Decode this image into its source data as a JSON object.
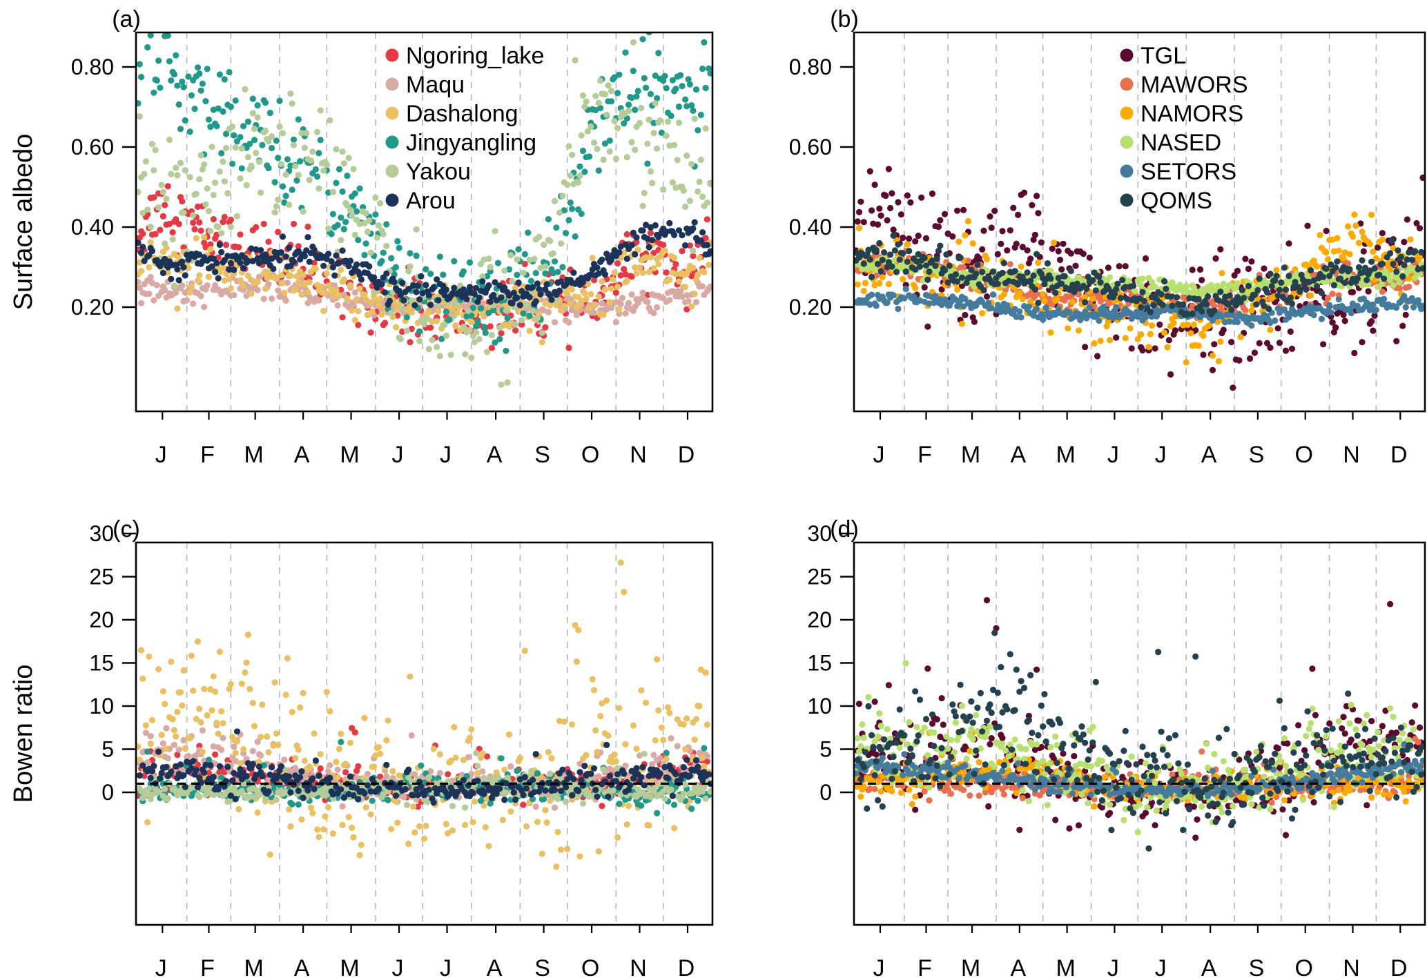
{
  "chart_data": [
    {
      "id": "a",
      "panel_label": "(a)",
      "type": "scatter",
      "ylabel": "Surface albedo",
      "xlabel": "",
      "x_unit": "day of year",
      "xlim": [
        1,
        365
      ],
      "ylim": [
        0.1,
        0.9
      ],
      "yticks": [
        0.2,
        0.4,
        0.6,
        0.8
      ],
      "ytick_labels": [
        "0.20",
        "0.40",
        "0.60",
        "0.80"
      ],
      "month_labels": [
        "J",
        "F",
        "M",
        "A",
        "M",
        "J",
        "J",
        "A",
        "S",
        "O",
        "N",
        "D"
      ],
      "grid": "vertical dashed lines at month boundaries",
      "reference_line": null,
      "legend_position": "top-center",
      "note": "Daily scatter; per-station values below are approximate monthly means (Jan..Dec) with a typical scatter (spread) estimated from the figure. Plotted points are synthesized from these estimates and do not reproduce individual measurements.",
      "series": [
        {
          "name": "Ngoring_lake",
          "color": "#e63946",
          "monthly_mean": [
            0.46,
            0.38,
            0.34,
            0.3,
            0.25,
            0.21,
            0.185,
            0.185,
            0.19,
            0.21,
            0.33,
            0.31
          ],
          "spread": 0.04
        },
        {
          "name": "Maqu",
          "color": "#d9a9a4",
          "monthly_mean": [
            0.24,
            0.24,
            0.25,
            0.24,
            0.22,
            0.2,
            0.2,
            0.2,
            0.2,
            0.2,
            0.21,
            0.24
          ],
          "spread": 0.015
        },
        {
          "name": "Dashalong",
          "color": "#e9c062",
          "monthly_mean": [
            0.33,
            0.29,
            0.27,
            0.26,
            0.23,
            0.2,
            0.19,
            0.19,
            0.2,
            0.25,
            0.33,
            0.28
          ],
          "spread": 0.03
        },
        {
          "name": "Jingyangling",
          "color": "#21998a",
          "monthly_mean": [
            0.8,
            0.68,
            0.62,
            0.58,
            0.45,
            0.26,
            0.22,
            0.21,
            0.28,
            0.62,
            0.74,
            0.73
          ],
          "spread": 0.06
        },
        {
          "name": "Yakou",
          "color": "#b5cc98",
          "monthly_mean": [
            0.45,
            0.5,
            0.56,
            0.6,
            0.48,
            0.22,
            0.17,
            0.17,
            0.3,
            0.68,
            0.65,
            0.55
          ],
          "spread": 0.08
        },
        {
          "name": "Arou",
          "color": "#1b3358",
          "monthly_mean": [
            0.305,
            0.31,
            0.32,
            0.34,
            0.3,
            0.24,
            0.235,
            0.235,
            0.23,
            0.28,
            0.38,
            0.38
          ],
          "spread": 0.015
        }
      ]
    },
    {
      "id": "b",
      "panel_label": "(b)",
      "type": "scatter",
      "ylabel": "",
      "xlabel": "",
      "x_unit": "day of year",
      "xlim": [
        1,
        365
      ],
      "ylim": [
        0.1,
        0.9
      ],
      "yticks": [
        0.2,
        0.4,
        0.6,
        0.8
      ],
      "ytick_labels": [
        "0.20",
        "0.40",
        "0.60",
        "0.80"
      ],
      "month_labels": [
        "J",
        "F",
        "M",
        "A",
        "M",
        "J",
        "J",
        "A",
        "S",
        "O",
        "N",
        "D"
      ],
      "grid": "vertical dashed lines at month boundaries",
      "reference_line": null,
      "legend_position": "top-center",
      "note": "Daily scatter; approximate monthly means (Jan..Dec) with estimated spread. Plotted points are synthesized and do not reproduce individual measurements.",
      "series": [
        {
          "name": "TGL",
          "color": "#5a0a2e",
          "monthly_mean": [
            0.42,
            0.3,
            0.3,
            0.36,
            0.3,
            0.22,
            0.17,
            0.17,
            0.2,
            0.21,
            0.22,
            0.3
          ],
          "spread": 0.07
        },
        {
          "name": "MAWORS",
          "color": "#e9704f",
          "monthly_mean": [
            0.31,
            0.3,
            0.28,
            0.25,
            0.22,
            0.22,
            0.21,
            0.2,
            0.23,
            0.26,
            0.28,
            0.27
          ],
          "spread": 0.02
        },
        {
          "name": "NAMORS",
          "color": "#fdaa00",
          "monthly_mean": [
            0.3,
            0.28,
            0.26,
            0.24,
            0.21,
            0.18,
            0.17,
            0.18,
            0.2,
            0.28,
            0.4,
            0.3
          ],
          "spread": 0.04
        },
        {
          "name": "NASED",
          "color": "#b8e06e",
          "monthly_mean": [
            0.31,
            0.3,
            0.27,
            0.27,
            0.27,
            0.26,
            0.25,
            0.24,
            0.25,
            0.27,
            0.27,
            0.28
          ],
          "spread": 0.01
        },
        {
          "name": "SETORS",
          "color": "#457b9d",
          "monthly_mean": [
            0.22,
            0.22,
            0.21,
            0.19,
            0.18,
            0.18,
            0.19,
            0.18,
            0.17,
            0.19,
            0.2,
            0.21
          ],
          "spread": 0.008
        },
        {
          "name": "QOMS",
          "color": "#23414f",
          "monthly_mean": [
            0.33,
            0.31,
            0.28,
            0.27,
            0.26,
            0.24,
            0.22,
            0.21,
            0.23,
            0.27,
            0.29,
            0.31
          ],
          "spread": 0.02
        }
      ]
    },
    {
      "id": "c",
      "panel_label": "(c)",
      "type": "scatter",
      "ylabel": "Bowen ratio",
      "xlabel": "",
      "x_unit": "day of year",
      "xlim": [
        1,
        365
      ],
      "ylim": [
        -3,
        30
      ],
      "yticks": [
        0,
        5,
        10,
        15,
        20,
        25,
        30
      ],
      "ytick_labels": [
        "0",
        "5",
        "10",
        "15",
        "20",
        "25",
        "30"
      ],
      "month_labels": [
        "J",
        "F",
        "M",
        "A",
        "M",
        "J",
        "J",
        "A",
        "S",
        "O",
        "N",
        "D"
      ],
      "grid": "vertical dashed lines at month boundaries",
      "reference_line": {
        "y": 1,
        "style": "dashed",
        "color": "#000000"
      },
      "legend_position": "none (shares legend with panel a)",
      "note": "Daily scatter; approximate monthly means (Jan..Dec) with estimated spread. Plotted points are synthesized and do not reproduce individual measurements.",
      "series": [
        {
          "name": "Ngoring_lake",
          "color": "#e63946",
          "monthly_mean": [
            1.5,
            2.5,
            2.0,
            1.3,
            0.8,
            0.5,
            0.4,
            0.5,
            0.7,
            1.0,
            1.5,
            3.0
          ],
          "spread": 1.0
        },
        {
          "name": "Maqu",
          "color": "#d9a9a4",
          "monthly_mean": [
            4.0,
            4.5,
            3.0,
            1.5,
            0.8,
            0.5,
            0.4,
            0.5,
            0.6,
            1.2,
            2.5,
            3.5
          ],
          "spread": 1.3
        },
        {
          "name": "Dashalong",
          "color": "#e9c062",
          "monthly_mean": [
            8.0,
            10.0,
            5.0,
            2.0,
            1.0,
            0.6,
            0.5,
            0.6,
            0.8,
            2.0,
            4.0,
            5.0
          ],
          "spread": 4.5
        },
        {
          "name": "Jingyangling",
          "color": "#21998a",
          "monthly_mean": [
            0.5,
            0.0,
            0.0,
            -0.2,
            0.2,
            0.5,
            0.5,
            0.5,
            0.7,
            0.5,
            -0.5,
            -0.5
          ],
          "spread": 1.0
        },
        {
          "name": "Yakou",
          "color": "#b5cc98",
          "monthly_mean": [
            0.3,
            0.3,
            0.0,
            0.0,
            0.3,
            0.4,
            0.5,
            0.5,
            0.7,
            0.2,
            0.0,
            0.0
          ],
          "spread": 1.0
        },
        {
          "name": "Arou",
          "color": "#1b3358",
          "monthly_mean": [
            2.5,
            2.0,
            1.8,
            1.0,
            0.6,
            0.2,
            0.2,
            0.2,
            0.5,
            1.2,
            2.0,
            2.5
          ],
          "spread": 0.9
        }
      ]
    },
    {
      "id": "d",
      "panel_label": "(d)",
      "type": "scatter",
      "ylabel": "",
      "xlabel": "",
      "x_unit": "day of year",
      "xlim": [
        1,
        365
      ],
      "ylim": [
        -3,
        30
      ],
      "yticks": [
        0,
        5,
        10,
        15,
        20,
        25,
        30
      ],
      "ytick_labels": [
        "0",
        "5",
        "10",
        "15",
        "20",
        "25",
        "30"
      ],
      "month_labels": [
        "J",
        "F",
        "M",
        "A",
        "M",
        "J",
        "J",
        "A",
        "S",
        "O",
        "N",
        "D"
      ],
      "grid": "vertical dashed lines at month boundaries",
      "reference_line": {
        "y": 1,
        "style": "dashed",
        "color": "#000000"
      },
      "legend_position": "none (shares legend with panel b)",
      "note": "Daily scatter; approximate monthly means (Jan..Dec) with estimated spread. Plotted points are synthesized and do not reproduce individual measurements.",
      "series": [
        {
          "name": "TGL",
          "color": "#5a0a2e",
          "monthly_mean": [
            5.0,
            4.0,
            5.0,
            3.0,
            1.5,
            0.6,
            0.4,
            0.5,
            1.0,
            3.0,
            5.0,
            6.0
          ],
          "spread": 2.5
        },
        {
          "name": "MAWORS",
          "color": "#e9704f",
          "monthly_mean": [
            1.5,
            1.3,
            1.2,
            1.0,
            0.8,
            0.6,
            0.5,
            0.5,
            0.7,
            0.8,
            0.7,
            0.6
          ],
          "spread": 0.8
        },
        {
          "name": "NAMORS",
          "color": "#fdaa00",
          "monthly_mean": [
            1.0,
            1.8,
            2.2,
            2.5,
            1.5,
            0.7,
            0.4,
            0.4,
            0.6,
            0.7,
            0.8,
            0.8
          ],
          "spread": 1.0
        },
        {
          "name": "NASED",
          "color": "#b8e06e",
          "monthly_mean": [
            5.0,
            4.0,
            4.5,
            4.0,
            3.0,
            1.5,
            0.5,
            0.5,
            1.5,
            3.5,
            4.0,
            5.0
          ],
          "spread": 2.2
        },
        {
          "name": "SETORS",
          "color": "#457b9d",
          "monthly_mean": [
            3.0,
            2.8,
            2.0,
            1.5,
            0.8,
            0.3,
            0.2,
            0.2,
            0.5,
            1.0,
            2.0,
            3.0
          ],
          "spread": 0.5
        },
        {
          "name": "QOMS",
          "color": "#23414f",
          "monthly_mean": [
            4.0,
            4.0,
            8.0,
            9.0,
            5.0,
            2.5,
            0.6,
            0.5,
            2.0,
            4.0,
            4.0,
            4.0
          ],
          "spread": 3.0
        }
      ]
    }
  ]
}
